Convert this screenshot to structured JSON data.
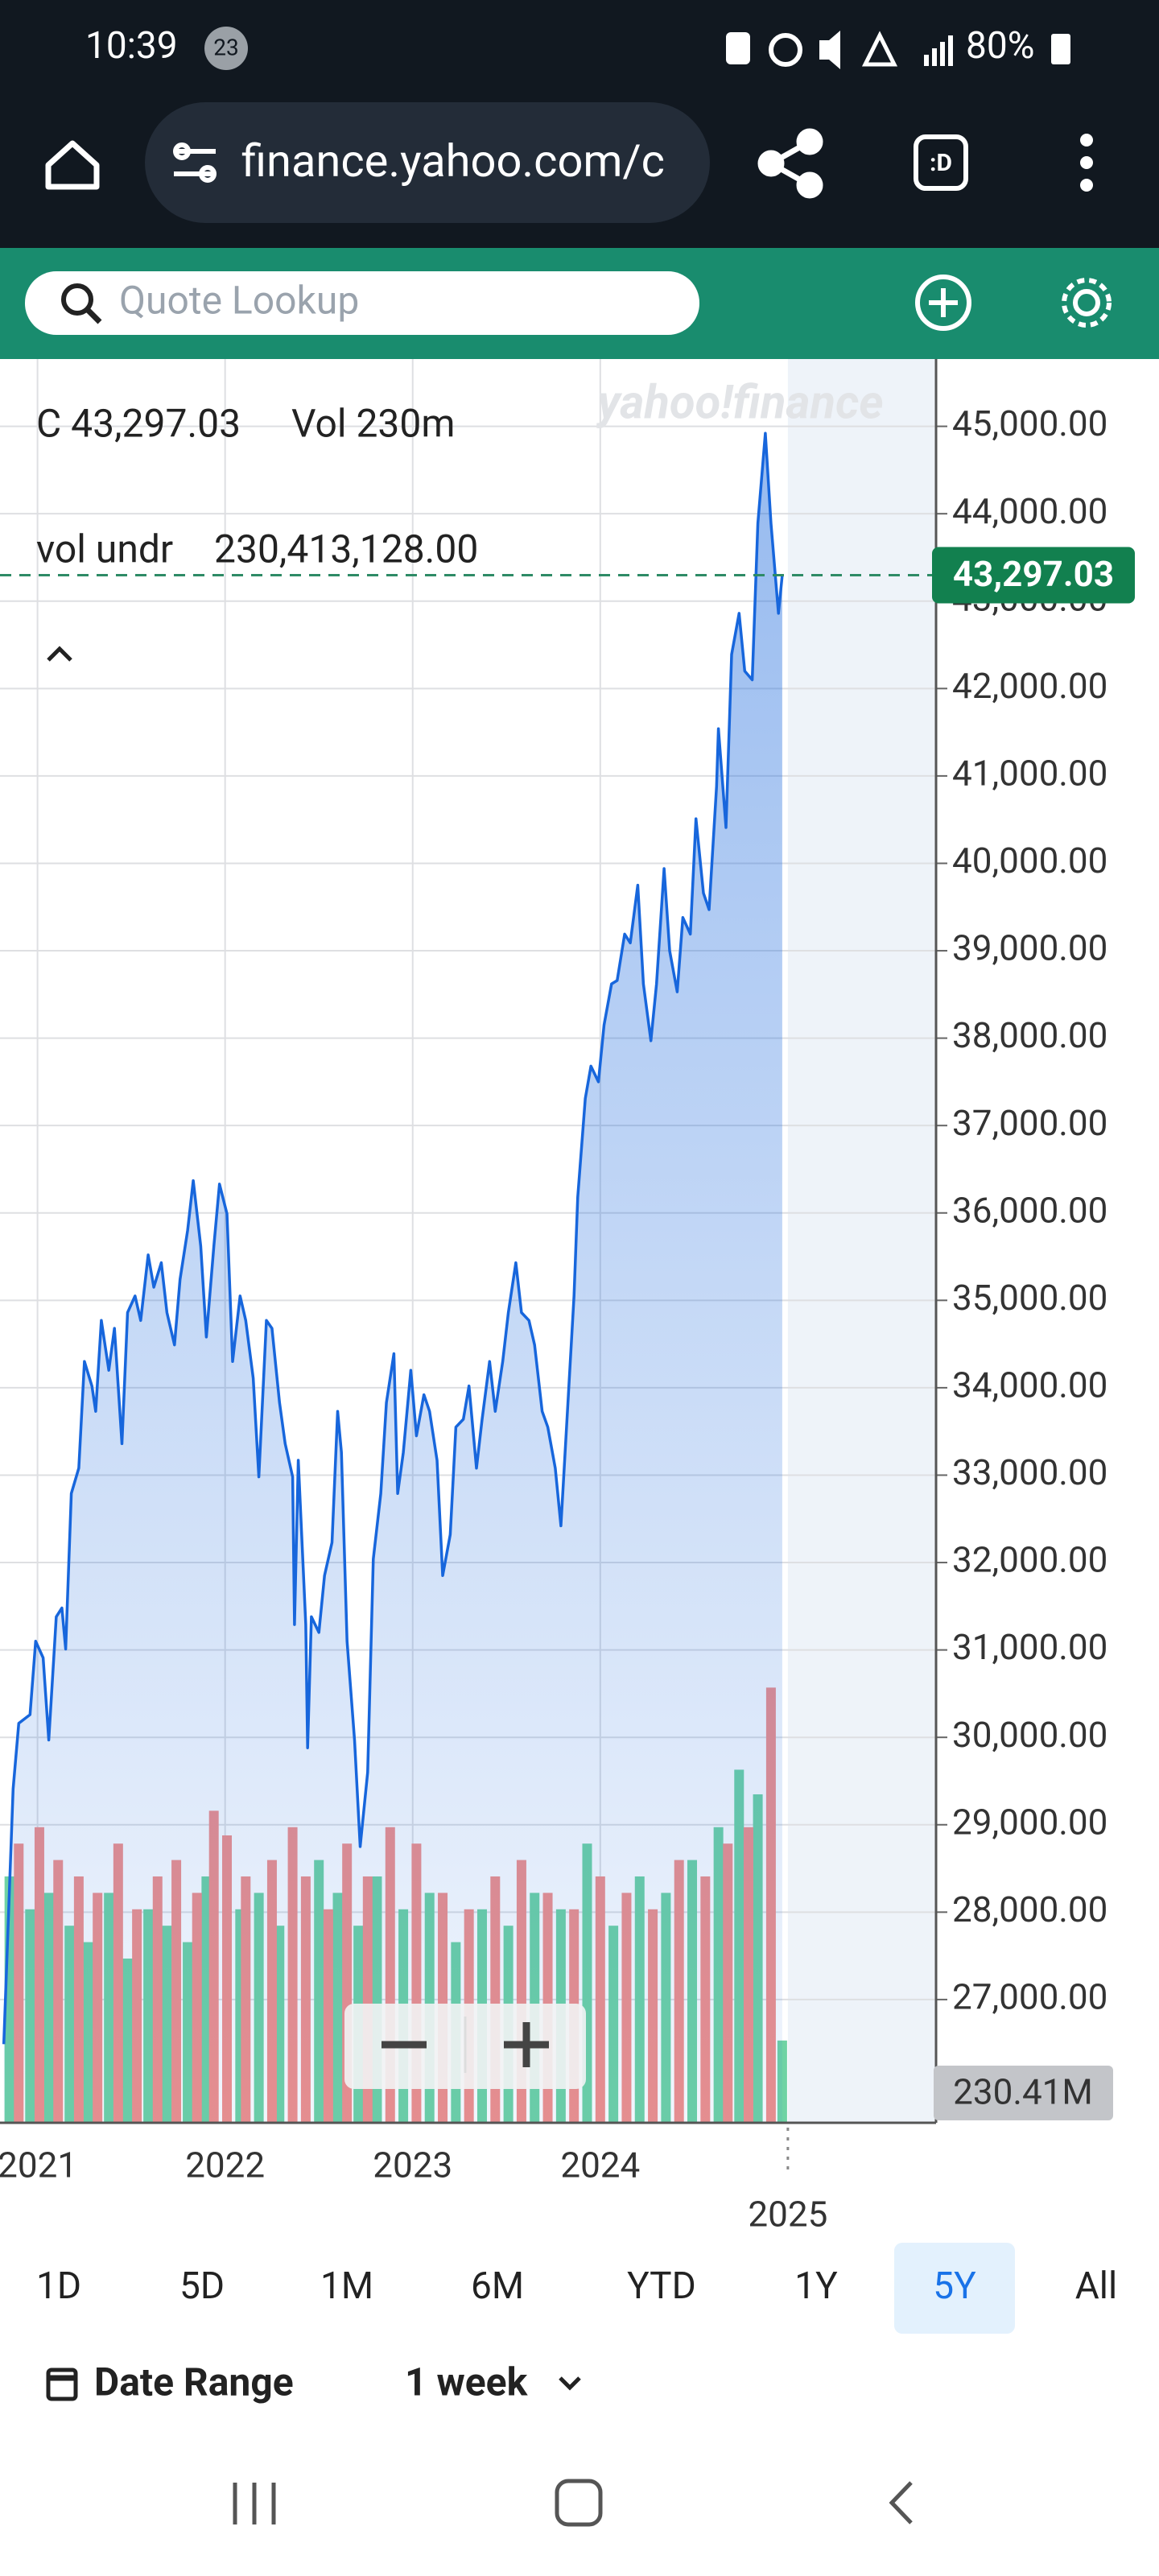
{
  "status_bar": {
    "time": "10:39",
    "badge": "23",
    "battery": "80%"
  },
  "browser_bar": {
    "url": "finance.yahoo.com/c",
    "tabs_icon": ":D"
  },
  "search": {
    "placeholder": "Quote Lookup"
  },
  "chart_header": {
    "close_label": "C 43,297.03",
    "volume_label": "Vol 230m",
    "volume_under": "vol undr",
    "volume_under_value": "230,413,128.00",
    "watermark": "yahoo!finance"
  },
  "chart_data": {
    "type": "line",
    "series": [
      {
        "color": "#1766dc",
        "x": [
          2020.82,
          2020.87,
          2020.9,
          2020.96,
          2020.99,
          2021.03,
          2021.06,
          2021.1,
          2021.13,
          2021.15,
          2021.18,
          2021.22,
          2021.25,
          2021.29,
          2021.31,
          2021.34,
          2021.38,
          2021.41,
          2021.45,
          2021.48,
          2021.52,
          2021.55,
          2021.59,
          2021.62,
          2021.66,
          2021.69,
          2021.73,
          2021.76,
          2021.8,
          2021.83,
          2021.87,
          2021.9,
          2021.94,
          2021.97,
          2022.01,
          2022.04,
          2022.08,
          2022.11,
          2022.15,
          2022.18,
          2022.22,
          2022.25,
          2022.29,
          2022.32,
          2022.36,
          2022.37,
          2022.39,
          2022.43,
          2022.44,
          2022.46,
          2022.5,
          2022.53,
          2022.57,
          2022.6,
          2022.62,
          2022.65,
          2022.69,
          2022.72,
          2022.76,
          2022.79,
          2022.83,
          2022.86,
          2022.9,
          2022.92,
          2022.95,
          2022.99,
          2023.02,
          2023.06,
          2023.09,
          2023.13,
          2023.16,
          2023.2,
          2023.23,
          2023.27,
          2023.3,
          2023.34,
          2023.37,
          2023.41,
          2023.44,
          2023.48,
          2023.51,
          2023.55,
          2023.58,
          2023.62,
          2023.65,
          2023.69,
          2023.72,
          2023.76,
          2023.79,
          2023.83,
          2023.86,
          2023.88,
          2023.92,
          2023.95,
          2023.99,
          2024.02,
          2024.06,
          2024.09,
          2024.13,
          2024.16,
          2024.2,
          2024.23,
          2024.27,
          2024.3,
          2024.34,
          2024.37,
          2024.41,
          2024.44,
          2024.48,
          2024.51,
          2024.55,
          2024.58,
          2024.62,
          2024.63,
          2024.67,
          2024.7,
          2024.74,
          2024.77,
          2024.81,
          2024.84,
          2024.88,
          2024.91,
          2024.95,
          2024.97
        ],
        "values": [
          26490,
          29410,
          30160,
          30260,
          31100,
          30910,
          29970,
          31380,
          31480,
          31010,
          32790,
          33080,
          34300,
          34020,
          33730,
          34770,
          34200,
          34680,
          33360,
          34860,
          35050,
          34770,
          35520,
          35150,
          35430,
          34860,
          34490,
          35240,
          35800,
          36370,
          35620,
          34580,
          35620,
          36330,
          35990,
          34300,
          35050,
          34770,
          34110,
          32980,
          34770,
          34680,
          33830,
          33360,
          32980,
          31290,
          33170,
          31290,
          29880,
          31380,
          31200,
          31850,
          32230,
          33730,
          33260,
          31100,
          29970,
          28750,
          29600,
          32040,
          32790,
          33830,
          34390,
          32790,
          33260,
          34200,
          33450,
          33920,
          33730,
          33170,
          31850,
          32320,
          33550,
          33640,
          34020,
          33080,
          33640,
          34300,
          33730,
          34300,
          34860,
          35430,
          34860,
          34770,
          34490,
          33730,
          33550,
          33080,
          32420,
          33920,
          35050,
          36180,
          37310,
          37680,
          37500,
          38150,
          38620,
          38660,
          39190,
          39090,
          39750,
          38620,
          37970,
          38620,
          39940,
          39000,
          38530,
          39380,
          39190,
          40510,
          39660,
          39470,
          40880,
          41540,
          40410,
          42390,
          42860,
          42200,
          42100,
          43890,
          44920,
          43890,
          42860,
          43297.03
        ]
      }
    ],
    "volume": {
      "up": {
        "color": "#6fd3a4",
        "x": [
          2020.85,
          2020.96,
          2021.06,
          2021.17,
          2021.27,
          2021.38,
          2021.48,
          2021.59,
          2021.69,
          2021.8,
          2021.9,
          2022.08,
          2022.18,
          2022.29,
          2022.5,
          2022.6,
          2022.71,
          2022.81,
          2022.95,
          2023.09,
          2023.23,
          2023.37,
          2023.51,
          2023.65,
          2023.79,
          2023.93,
          2024.07,
          2024.21,
          2024.35,
          2024.49,
          2024.63,
          2024.74,
          2024.84,
          2024.97
        ],
        "values": [
          690,
          598,
          644,
          552,
          506,
          644,
          460,
          598,
          552,
          506,
          690,
          598,
          644,
          552,
          736,
          644,
          552,
          690,
          598,
          644,
          506,
          598,
          552,
          644,
          598,
          782,
          552,
          690,
          644,
          736,
          828,
          989,
          920,
          230.41
        ]
      },
      "down": {
        "color": "#f2908b",
        "x": [
          2020.9,
          2021.01,
          2021.11,
          2021.22,
          2021.32,
          2021.43,
          2021.53,
          2021.64,
          2021.74,
          2021.85,
          2021.94,
          2022.01,
          2022.11,
          2022.25,
          2022.36,
          2022.43,
          2022.55,
          2022.65,
          2022.76,
          2022.88,
          2023.02,
          2023.16,
          2023.3,
          2023.44,
          2023.58,
          2023.72,
          2023.86,
          2024.0,
          2024.14,
          2024.28,
          2024.42,
          2024.56,
          2024.68,
          2024.79,
          2024.91
        ],
        "values": [
          782,
          828,
          736,
          690,
          644,
          782,
          598,
          690,
          736,
          644,
          874,
          805,
          690,
          736,
          828,
          690,
          598,
          782,
          690,
          828,
          782,
          644,
          598,
          690,
          736,
          644,
          598,
          690,
          644,
          598,
          736,
          690,
          782,
          828,
          1219
        ]
      }
    },
    "xlim": [
      2020.8,
      2025.79
    ],
    "xticks": [
      2021,
      2022,
      2023,
      2024,
      2025
    ],
    "ylim": [
      25590,
      45770
    ],
    "yticks": [
      {
        "value": 27000,
        "label": "27,000.00"
      },
      {
        "value": 28000,
        "label": "28,000.00"
      },
      {
        "value": 29000,
        "label": "29,000.00"
      },
      {
        "value": 30000,
        "label": "30,000.00"
      },
      {
        "value": 31000,
        "label": "31,000.00"
      },
      {
        "value": 32000,
        "label": "32,000.00"
      },
      {
        "value": 33000,
        "label": "33,000.00"
      },
      {
        "value": 34000,
        "label": "34,000.00"
      },
      {
        "value": 35000,
        "label": "35,000.00"
      },
      {
        "value": 36000,
        "label": "36,000.00"
      },
      {
        "value": 37000,
        "label": "37,000.00"
      },
      {
        "value": 38000,
        "label": "38,000.00"
      },
      {
        "value": 39000,
        "label": "39,000.00"
      },
      {
        "value": 40000,
        "label": "40,000.00"
      },
      {
        "value": 41000,
        "label": "41,000.00"
      },
      {
        "value": 42000,
        "label": "42,000.00"
      },
      {
        "value": 43000,
        "label": "43,000.00"
      },
      {
        "value": 44000,
        "label": "44,000.00"
      },
      {
        "value": 45000,
        "label": "45,000.00"
      }
    ],
    "grid": true,
    "current_price": {
      "value": 43297.03,
      "label": "43,297.03"
    },
    "current_volume_label": "230.41M"
  },
  "ranges": {
    "items": [
      "1D",
      "5D",
      "1M",
      "6M",
      "YTD",
      "1Y",
      "5Y",
      "All"
    ],
    "selected": 6
  },
  "footer": {
    "date_range": "Date Range",
    "interval": "1 week"
  }
}
